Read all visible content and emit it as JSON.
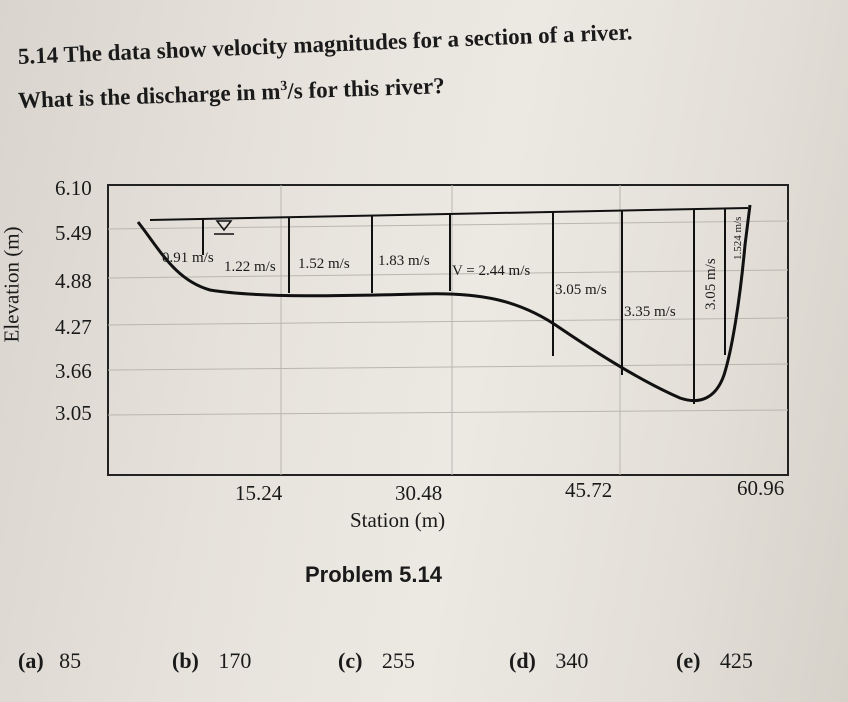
{
  "problem": {
    "line1": "5.14 The data show velocity magnitudes for a section of a river.",
    "line2_prefix": "What is the discharge in m",
    "line2_sup": "3",
    "line2_suffix": "/s for this river?"
  },
  "chart_data": {
    "type": "diagram",
    "xlabel": "Station (m)",
    "ylabel": "Elevation (m)",
    "x_ticks": [
      "15.24",
      "30.48",
      "45.72",
      "60.96"
    ],
    "y_ticks": [
      "6.10",
      "5.49",
      "4.88",
      "4.27",
      "3.66",
      "3.05"
    ],
    "velocity_labels": [
      "0.91 m/s",
      "1.22 m/s",
      "1.52 m/s",
      "1.83 m/s",
      "V = 2.44 m/s",
      "3.05 m/s",
      "3.35 m/s",
      "3.05 m/s",
      "1.524 m/s"
    ],
    "caption": "Problem 5.14"
  },
  "answers": [
    {
      "letter": "(a)",
      "value": "85"
    },
    {
      "letter": "(b)",
      "value": "170"
    },
    {
      "letter": "(c)",
      "value": "255"
    },
    {
      "letter": "(d)",
      "value": "340"
    },
    {
      "letter": "(e)",
      "value": "425"
    }
  ]
}
